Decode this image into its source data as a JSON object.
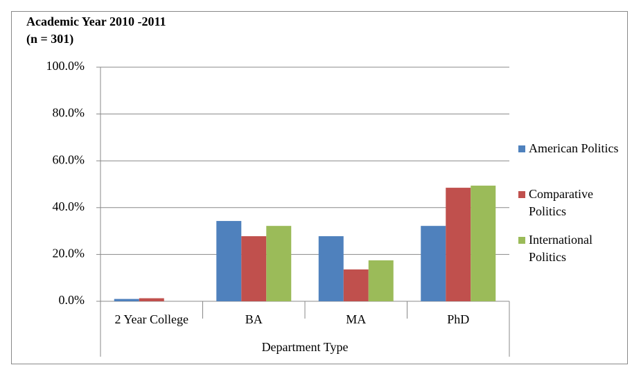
{
  "chart_data": {
    "type": "bar",
    "title": "Academic Year 2010 -2011",
    "subtitle": "(n = 301)",
    "x_label": "Department Type",
    "categories": [
      "2 Year College",
      "BA",
      "MA",
      "PhD"
    ],
    "series": [
      {
        "name": "American Politics",
        "color": "#4f81bd",
        "values": [
          1.0,
          34.3,
          27.8,
          32.2
        ]
      },
      {
        "name": "Comparative Politics",
        "color": "#c0504d",
        "values": [
          1.3,
          27.8,
          13.6,
          48.5
        ]
      },
      {
        "name": "International Politics",
        "color": "#9bbb59",
        "values": [
          0,
          32.2,
          17.5,
          49.4
        ]
      }
    ],
    "ylim": [
      0,
      100
    ],
    "yticks": [
      {
        "value": 0,
        "label": "0.0%"
      },
      {
        "value": 20,
        "label": "20.0%"
      },
      {
        "value": 40,
        "label": "40.0%"
      },
      {
        "value": 60,
        "label": "60.0%"
      },
      {
        "value": 80,
        "label": "80.0%"
      },
      {
        "value": 100,
        "label": "100.0%"
      }
    ],
    "grid": true,
    "legend": "right"
  }
}
